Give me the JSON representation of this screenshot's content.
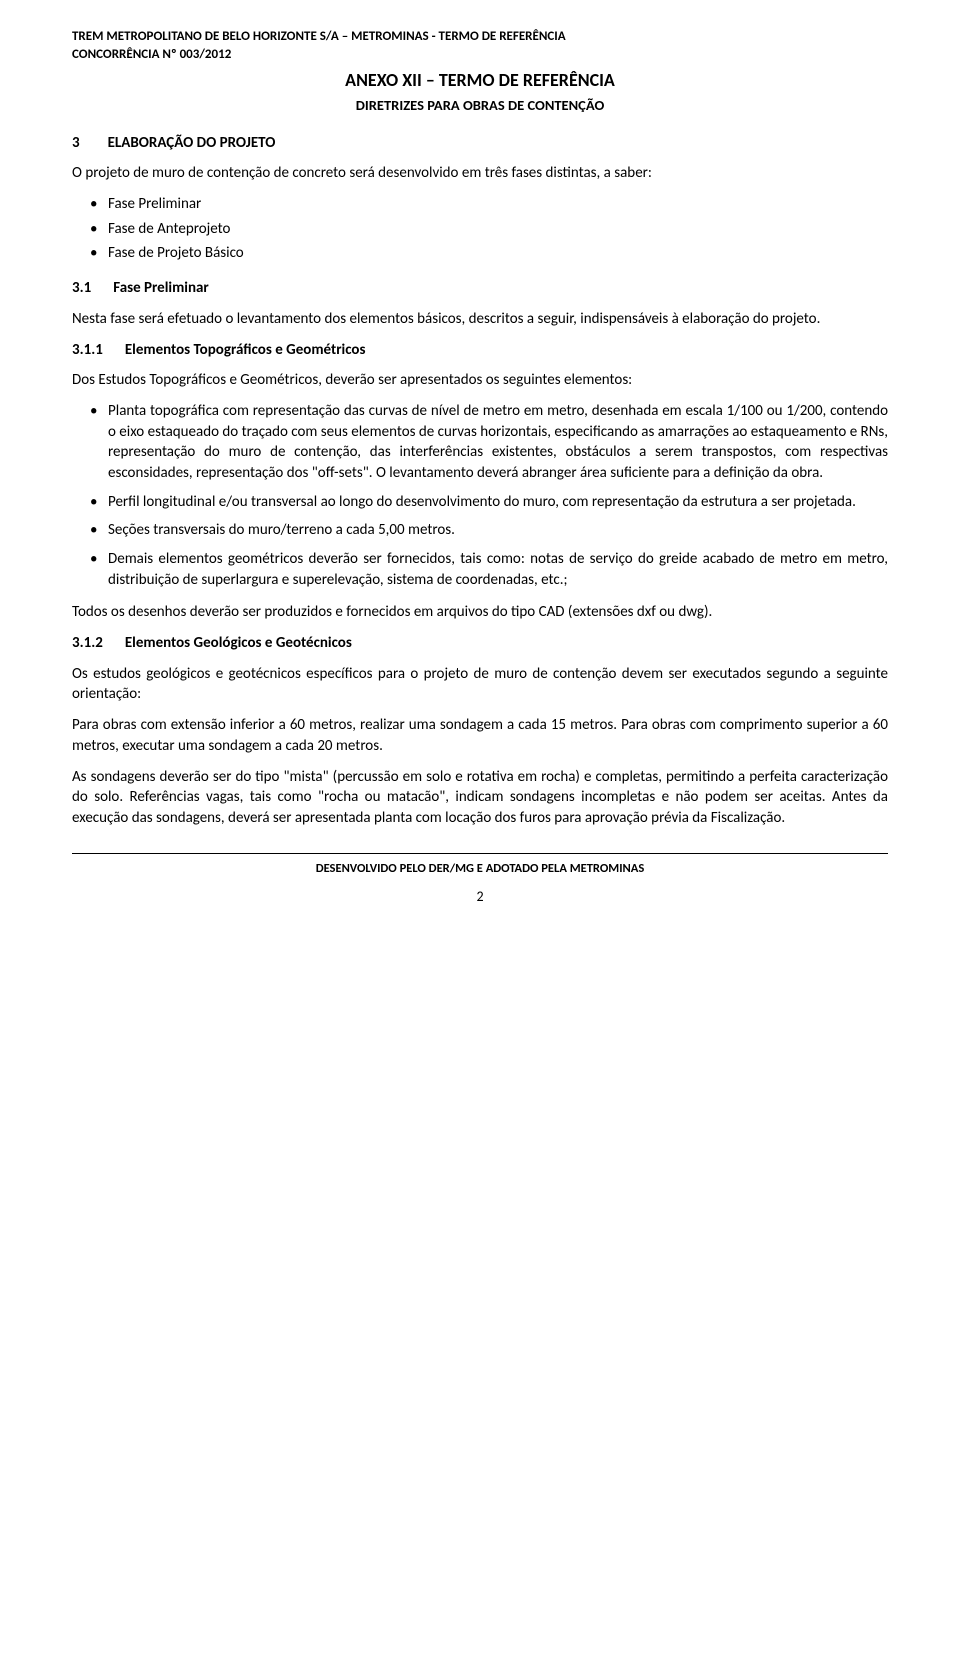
{
  "header": {
    "line1": "TREM METROPOLITANO DE BELO HORIZONTE S/A – METROMINAS - TERMO DE REFERÊNCIA",
    "line2": "CONCORRÊNCIA Nº 003/2012"
  },
  "title": "ANEXO XII – TERMO DE REFERÊNCIA",
  "subtitle": "DIRETRIZES PARA OBRAS DE CONTENÇÃO",
  "section": {
    "num": "3",
    "title": "ELABORAÇÃO DO PROJETO"
  },
  "para1": "O projeto de muro de contenção de concreto será desenvolvido em três fases distintas, a saber:",
  "list1": {
    "i0": "Fase Preliminar",
    "i1": "Fase de Anteprojeto",
    "i2": "Fase de Projeto Básico"
  },
  "sub31": {
    "num": "3.1",
    "title": "Fase Preliminar"
  },
  "para2": "Nesta fase será efetuado o levantamento dos elementos básicos, descritos a seguir, indispensáveis à elaboração do projeto.",
  "sub311": {
    "num": "3.1.1",
    "title": "Elementos Topográficos e Geométricos"
  },
  "para3": "Dos Estudos Topográficos e Geométricos, deverão ser apresentados os seguintes elementos:",
  "list2": {
    "i0": "Planta topográfica com representação das curvas de nível de metro em metro, desenhada em escala 1/100 ou 1/200, contendo o eixo estaqueado do traçado com seus elementos de curvas horizontais, especificando as amarrações ao estaqueamento e RNs, representação do muro de contenção, das interferências existentes, obstáculos a serem transpostos, com respectivas esconsidades, representação dos \"off-sets\". O levantamento deverá abranger área suficiente para a definição da obra.",
    "i1": "Perfil longitudinal e/ou transversal ao longo do desenvolvimento do muro, com representação da estrutura a ser projetada.",
    "i2": "Seções transversais do muro/terreno a cada 5,00 metros.",
    "i3": "Demais elementos geométricos deverão ser fornecidos, tais como: notas de serviço do greide acabado de metro em metro, distribuição de superlargura e superelevação, sistema de coordenadas, etc.;"
  },
  "para4": "Todos os desenhos deverão ser produzidos e fornecidos em arquivos do tipo CAD (extensões dxf ou dwg).",
  "sub312": {
    "num": "3.1.2",
    "title": "Elementos Geológicos e Geotécnicos"
  },
  "para5": "Os estudos geológicos e geotécnicos específicos para o projeto de muro de contenção devem ser executados segundo a seguinte orientação:",
  "para6": "Para obras com extensão inferior a 60 metros, realizar uma sondagem a cada 15 metros. Para obras com comprimento superior a 60 metros, executar uma sondagem a cada 20 metros.",
  "para7": "As sondagens deverão ser do tipo \"mista\" (percussão em solo e rotativa em rocha) e completas, permitindo a perfeita caracterização do solo. Referências vagas, tais como \"rocha ou matacão\", indicam sondagens incompletas e não podem ser aceitas. Antes da execução das sondagens, deverá ser apresentada planta com locação dos furos para aprovação prévia da Fiscalização.",
  "footer": {
    "text": "DESENVOLVIDO PELO DER/MG E ADOTADO PELA METROMINAS",
    "page": "2"
  }
}
